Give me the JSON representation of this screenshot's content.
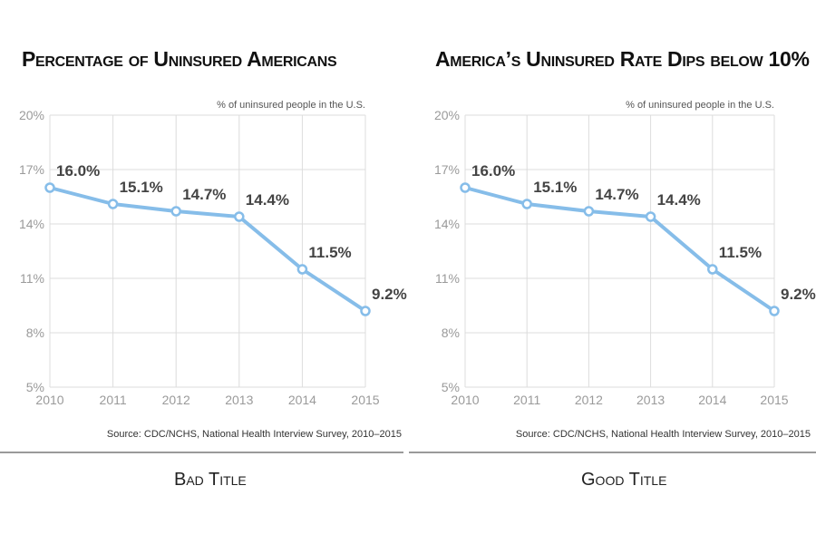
{
  "chart_data": [
    {
      "type": "line",
      "title": "Percentage of Uninsured Americans",
      "subtitle": "% of uninsured people in the U.S.",
      "source": "Source: CDC/NCHS, National Health Interview Survey, 2010–2015",
      "x": [
        2010,
        2011,
        2012,
        2013,
        2014,
        2015
      ],
      "x_tick_labels": [
        "2010",
        "2011",
        "2012",
        "2013",
        "2014",
        "2015"
      ],
      "y": [
        16.0,
        15.1,
        14.7,
        14.4,
        11.5,
        9.2
      ],
      "data_labels": [
        "16.0%",
        "15.1%",
        "14.7%",
        "14.4%",
        "11.5%",
        "9.2%"
      ],
      "y_ticks": [
        5,
        8,
        11,
        14,
        17,
        20
      ],
      "y_tick_labels": [
        "5%",
        "8%",
        "11%",
        "14%",
        "17%",
        "20%"
      ],
      "ylim": [
        5,
        20
      ],
      "xlim": [
        2010,
        2015
      ],
      "grid": true,
      "line_color": "#86bde9",
      "caption": "Bad Title"
    },
    {
      "type": "line",
      "title": "America’s Uninsured Rate Dips below 10%",
      "subtitle": "% of uninsured people in the U.S.",
      "source": "Source: CDC/NCHS, National Health Interview Survey, 2010–2015",
      "x": [
        2010,
        2011,
        2012,
        2013,
        2014,
        2015
      ],
      "x_tick_labels": [
        "2010",
        "2011",
        "2012",
        "2013",
        "2014",
        "2015"
      ],
      "y": [
        16.0,
        15.1,
        14.7,
        14.4,
        11.5,
        9.2
      ],
      "data_labels": [
        "16.0%",
        "15.1%",
        "14.7%",
        "14.4%",
        "11.5%",
        "9.2%"
      ],
      "y_ticks": [
        5,
        8,
        11,
        14,
        17,
        20
      ],
      "y_tick_labels": [
        "5%",
        "8%",
        "11%",
        "14%",
        "17%",
        "20%"
      ],
      "ylim": [
        5,
        20
      ],
      "xlim": [
        2010,
        2015
      ],
      "grid": true,
      "line_color": "#86bde9",
      "caption": "Good Title"
    }
  ]
}
